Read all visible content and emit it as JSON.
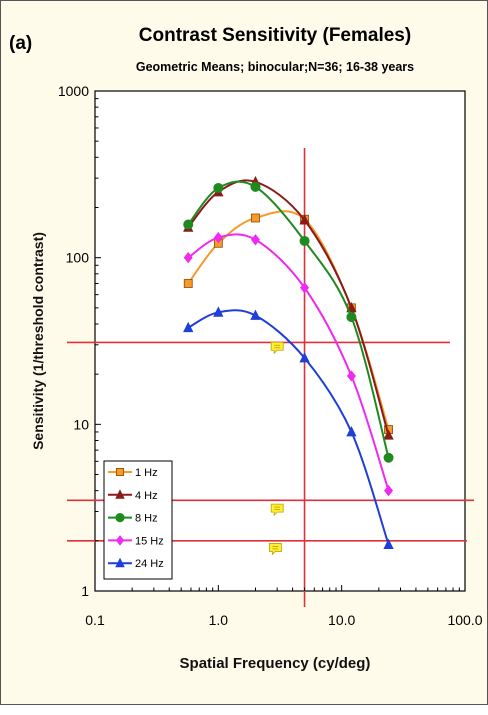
{
  "panel_label": "(a)",
  "chart_data": {
    "type": "line",
    "title": "Contrast Sensitivity (Females)",
    "subtitle": "Geometric Means; binocular;N=36; 16-38 years",
    "xlabel": "Spatial Frequency (cy/deg)",
    "ylabel": "Sensitivity (1/threshold contrast)",
    "xscale": "log",
    "yscale": "log",
    "xlim": [
      0.1,
      100
    ],
    "ylim": [
      1,
      1000
    ],
    "x_ticks": [
      "0.1",
      "1.0",
      "10.0",
      "100.0"
    ],
    "y_ticks": [
      "1",
      "10",
      "100",
      "1000"
    ],
    "legend_position": "lower-left",
    "series": [
      {
        "name": "1 Hz",
        "color": "#f79a2b",
        "marker": "square",
        "x": [
          0.57,
          1.0,
          2.0,
          5.0,
          12.0,
          24.0
        ],
        "y": [
          70,
          122,
          173,
          170,
          50,
          9.3
        ]
      },
      {
        "name": "4 Hz",
        "color": "#8b1a1a",
        "marker": "triangle",
        "x": [
          0.57,
          1.0,
          2.0,
          5.0,
          12.0,
          24.0
        ],
        "y": [
          152,
          248,
          285,
          168,
          50,
          8.6
        ]
      },
      {
        "name": "8 Hz",
        "color": "#1f8a1f",
        "marker": "circle",
        "x": [
          0.57,
          1.0,
          2.0,
          5.0,
          12.0,
          24.0
        ],
        "y": [
          158,
          262,
          266,
          126,
          44,
          6.3
        ]
      },
      {
        "name": "15 Hz",
        "color": "#ee2bee",
        "marker": "diamond",
        "x": [
          0.57,
          1.0,
          2.0,
          5.0,
          12.0,
          24.0
        ],
        "y": [
          100,
          132,
          128,
          66,
          19.5,
          4.0
        ]
      },
      {
        "name": "24 Hz",
        "color": "#1f3fd6",
        "marker": "triangle",
        "x": [
          0.57,
          1.0,
          2.0,
          5.0,
          12.0,
          24.0
        ],
        "y": [
          38,
          47,
          45,
          25,
          9.0,
          1.9
        ]
      }
    ],
    "reference_lines": {
      "color": "#e0303a",
      "vertical_x": 5.0,
      "horizontal_y": [
        31,
        3.5,
        2.0
      ]
    },
    "comment_markers": {
      "color": "#ffee33",
      "points": [
        {
          "x": 3.0,
          "y": 29
        },
        {
          "x": 3.0,
          "y": 3.1
        },
        {
          "x": 2.9,
          "y": 1.8
        }
      ]
    }
  }
}
